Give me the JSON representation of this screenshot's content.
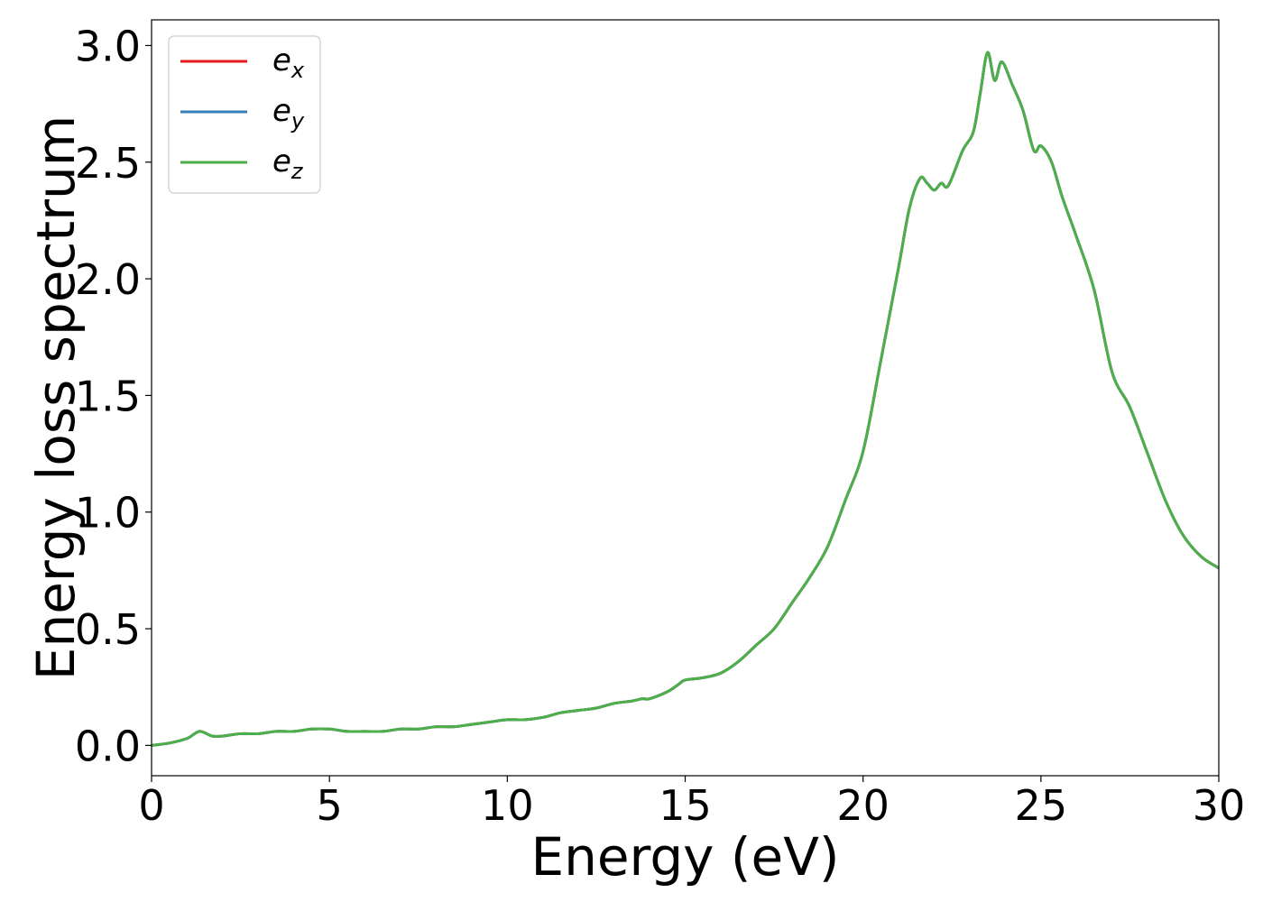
{
  "chart_data": {
    "type": "line",
    "title": "",
    "xlabel": "Energy (eV)",
    "ylabel": "Energy loss spectrum",
    "xlim": [
      0,
      30
    ],
    "ylim": [
      -0.13,
      3.11
    ],
    "xticks": [
      0,
      5,
      10,
      15,
      20,
      25,
      30
    ],
    "xtick_labels": [
      "0",
      "5",
      "10",
      "15",
      "20",
      "25",
      "30"
    ],
    "yticks": [
      0.0,
      0.5,
      1.0,
      1.5,
      2.0,
      2.5,
      3.0
    ],
    "ytick_labels": [
      "0.0",
      "0.5",
      "1.0",
      "1.5",
      "2.0",
      "2.5",
      "3.0"
    ],
    "grid": false,
    "legend_position": "upper-left",
    "x": [
      0,
      0.5,
      1.0,
      1.35,
      1.7,
      2.0,
      2.5,
      3.0,
      3.5,
      4.0,
      4.5,
      5.0,
      5.5,
      6.0,
      6.5,
      7.0,
      7.5,
      8.0,
      8.5,
      9.0,
      9.5,
      10.0,
      10.5,
      11.0,
      11.5,
      12.0,
      12.5,
      13.0,
      13.5,
      13.8,
      14.0,
      14.5,
      14.8,
      15.0,
      15.5,
      16.0,
      16.5,
      17.0,
      17.5,
      18.0,
      18.5,
      19.0,
      19.5,
      20.0,
      20.5,
      21.0,
      21.3,
      21.6,
      21.8,
      22.0,
      22.2,
      22.4,
      22.8,
      23.1,
      23.3,
      23.5,
      23.7,
      23.9,
      24.2,
      24.5,
      24.8,
      25.0,
      25.3,
      25.6,
      26.0,
      26.5,
      27.0,
      27.5,
      28.0,
      28.5,
      29.0,
      29.5,
      30.0
    ],
    "series": [
      {
        "name": "e_x",
        "color": "#e41a1c",
        "values": [
          0.0,
          0.01,
          0.03,
          0.06,
          0.04,
          0.04,
          0.05,
          0.05,
          0.06,
          0.06,
          0.07,
          0.07,
          0.06,
          0.06,
          0.06,
          0.07,
          0.07,
          0.08,
          0.08,
          0.09,
          0.1,
          0.11,
          0.11,
          0.12,
          0.14,
          0.15,
          0.16,
          0.18,
          0.19,
          0.2,
          0.2,
          0.23,
          0.26,
          0.28,
          0.29,
          0.31,
          0.36,
          0.43,
          0.5,
          0.61,
          0.72,
          0.85,
          1.05,
          1.26,
          1.65,
          2.05,
          2.3,
          2.43,
          2.41,
          2.38,
          2.41,
          2.4,
          2.55,
          2.63,
          2.8,
          2.97,
          2.85,
          2.93,
          2.83,
          2.72,
          2.55,
          2.57,
          2.5,
          2.35,
          2.18,
          1.95,
          1.6,
          1.45,
          1.25,
          1.05,
          0.9,
          0.81,
          0.76
        ]
      },
      {
        "name": "e_y",
        "color": "#377eb8",
        "values": [
          0.0,
          0.01,
          0.03,
          0.06,
          0.04,
          0.04,
          0.05,
          0.05,
          0.06,
          0.06,
          0.07,
          0.07,
          0.06,
          0.06,
          0.06,
          0.07,
          0.07,
          0.08,
          0.08,
          0.09,
          0.1,
          0.11,
          0.11,
          0.12,
          0.14,
          0.15,
          0.16,
          0.18,
          0.19,
          0.2,
          0.2,
          0.23,
          0.26,
          0.28,
          0.29,
          0.31,
          0.36,
          0.43,
          0.5,
          0.61,
          0.72,
          0.85,
          1.05,
          1.26,
          1.65,
          2.05,
          2.3,
          2.43,
          2.41,
          2.38,
          2.41,
          2.4,
          2.55,
          2.63,
          2.8,
          2.97,
          2.85,
          2.93,
          2.83,
          2.72,
          2.55,
          2.57,
          2.5,
          2.35,
          2.18,
          1.95,
          1.6,
          1.45,
          1.25,
          1.05,
          0.9,
          0.81,
          0.76
        ]
      },
      {
        "name": "e_z",
        "color": "#4daf4a",
        "values": [
          0.0,
          0.01,
          0.03,
          0.06,
          0.04,
          0.04,
          0.05,
          0.05,
          0.06,
          0.06,
          0.07,
          0.07,
          0.06,
          0.06,
          0.06,
          0.07,
          0.07,
          0.08,
          0.08,
          0.09,
          0.1,
          0.11,
          0.11,
          0.12,
          0.14,
          0.15,
          0.16,
          0.18,
          0.19,
          0.2,
          0.2,
          0.23,
          0.26,
          0.28,
          0.29,
          0.31,
          0.36,
          0.43,
          0.5,
          0.61,
          0.72,
          0.85,
          1.05,
          1.26,
          1.65,
          2.05,
          2.3,
          2.43,
          2.41,
          2.38,
          2.41,
          2.4,
          2.55,
          2.63,
          2.8,
          2.97,
          2.85,
          2.93,
          2.83,
          2.72,
          2.55,
          2.57,
          2.5,
          2.35,
          2.18,
          1.95,
          1.6,
          1.45,
          1.25,
          1.05,
          0.9,
          0.81,
          0.76
        ]
      }
    ],
    "legend": [
      {
        "base": "e",
        "sub": "x"
      },
      {
        "base": "e",
        "sub": "y"
      },
      {
        "base": "e",
        "sub": "z"
      }
    ]
  }
}
